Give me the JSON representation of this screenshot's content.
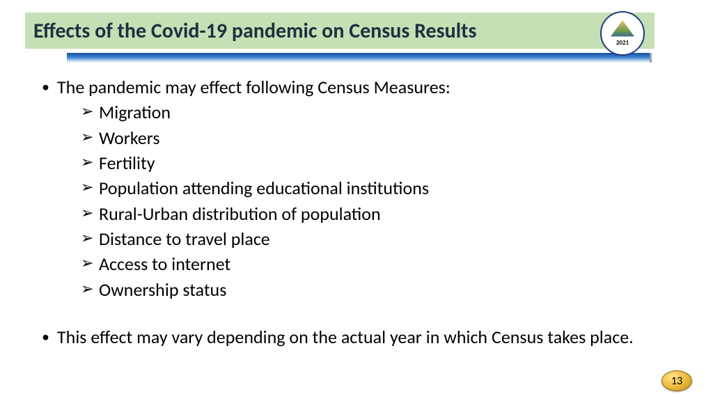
{
  "colors": {
    "title_bg": "#c5e0b4",
    "title_text": "#203040",
    "divider_from": "#1a4f9c",
    "divider_mid": "#3b82d0",
    "body_text": "#000000",
    "badge_border": "#8b6b16"
  },
  "type": "slide",
  "title": "Effects of the Covid-19 pandemic on Census Results",
  "logo": {
    "label": "Census of India",
    "year": "2021"
  },
  "body": {
    "intro": "The pandemic may effect following Census Measures:",
    "items": [
      "Migration",
      "Workers",
      "Fertility",
      "Population attending educational institutions",
      "Rural-Urban distribution of population",
      "Distance to travel place",
      "Access to internet",
      "Ownership status"
    ],
    "closing": "This effect may vary depending on the actual year in which Census takes place."
  },
  "page_number": "13",
  "fontsize": {
    "title": 30,
    "body": 26
  }
}
